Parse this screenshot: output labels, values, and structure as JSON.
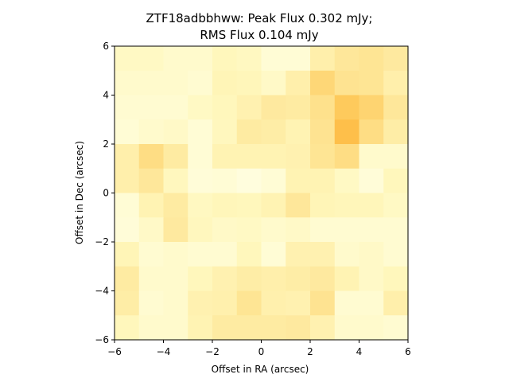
{
  "chart_data": {
    "type": "heatmap",
    "title_line1": "ZTF18adbbhww: Peak Flux 0.302 mJy;",
    "title_line2": "RMS Flux 0.104 mJy",
    "xlabel": "Offset in RA (arcsec)",
    "ylabel": "Offset in Dec (arcsec)",
    "xlim": [
      -6,
      6
    ],
    "ylim": [
      -6,
      6
    ],
    "xticks": [
      -6,
      -4,
      -2,
      0,
      2,
      4,
      6
    ],
    "yticks": [
      -6,
      -4,
      -2,
      0,
      2,
      4,
      6
    ],
    "colormap": "YlOrBr-like (light yellow low, orange high)",
    "grid": false,
    "cell_size_arcsec": 1,
    "values_rows_top_to_bottom": [
      [
        0.2,
        0.2,
        0.15,
        0.15,
        0.25,
        0.22,
        0.1,
        0.1,
        0.35,
        0.45,
        0.48,
        0.42
      ],
      [
        0.15,
        0.15,
        0.15,
        0.12,
        0.28,
        0.26,
        0.18,
        0.35,
        0.6,
        0.5,
        0.48,
        0.35
      ],
      [
        0.12,
        0.12,
        0.12,
        0.2,
        0.25,
        0.32,
        0.42,
        0.4,
        0.52,
        0.7,
        0.62,
        0.45
      ],
      [
        0.1,
        0.15,
        0.18,
        0.1,
        0.24,
        0.4,
        0.38,
        0.3,
        0.5,
        0.78,
        0.55,
        0.38
      ],
      [
        0.35,
        0.55,
        0.4,
        0.1,
        0.3,
        0.3,
        0.3,
        0.32,
        0.48,
        0.55,
        0.15,
        0.15
      ],
      [
        0.35,
        0.45,
        0.24,
        0.08,
        0.1,
        0.05,
        0.1,
        0.3,
        0.3,
        0.2,
        0.08,
        0.25
      ],
      [
        0.1,
        0.3,
        0.4,
        0.22,
        0.26,
        0.25,
        0.3,
        0.45,
        0.28,
        0.26,
        0.26,
        0.2
      ],
      [
        0.08,
        0.18,
        0.42,
        0.24,
        0.18,
        0.2,
        0.15,
        0.18,
        0.12,
        0.12,
        0.12,
        0.12
      ],
      [
        0.28,
        0.12,
        0.15,
        0.12,
        0.12,
        0.25,
        0.1,
        0.32,
        0.32,
        0.15,
        0.18,
        0.12
      ],
      [
        0.4,
        0.15,
        0.15,
        0.25,
        0.32,
        0.38,
        0.35,
        0.38,
        0.42,
        0.3,
        0.18,
        0.25
      ],
      [
        0.38,
        0.12,
        0.15,
        0.32,
        0.34,
        0.48,
        0.34,
        0.32,
        0.5,
        0.12,
        0.12,
        0.35
      ],
      [
        0.25,
        0.15,
        0.15,
        0.3,
        0.4,
        0.4,
        0.4,
        0.42,
        0.32,
        0.15,
        0.15,
        0.12
      ]
    ]
  }
}
